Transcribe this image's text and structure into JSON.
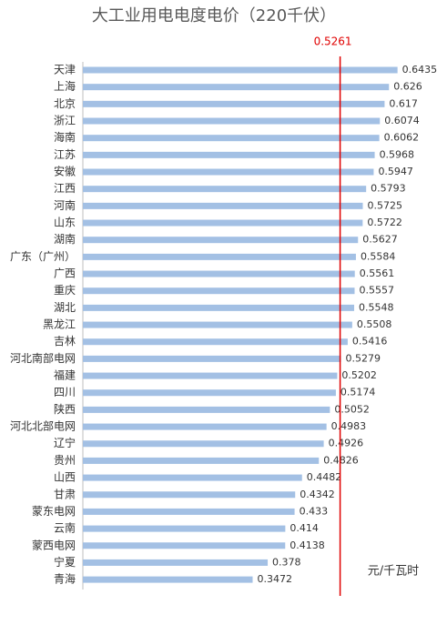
{
  "chart_data": {
    "type": "bar",
    "orientation": "horizontal",
    "title": "大工业用电电度电价（220千伏）",
    "categories": [
      "天津",
      "上海",
      "北京",
      "浙江",
      "海南",
      "江苏",
      "安徽",
      "江西",
      "河南",
      "山东",
      "湖南",
      "广东（广州）",
      "广西",
      "重庆",
      "湖北",
      "黑龙江",
      "吉林",
      "河北南部电网",
      "福建",
      "四川",
      "陕西",
      "河北北部电网",
      "辽宁",
      "贵州",
      "山西",
      "甘肃",
      "蒙东电网",
      "云南",
      "蒙西电网",
      "宁夏",
      "青海"
    ],
    "values": [
      0.6435,
      0.626,
      0.617,
      0.6074,
      0.6062,
      0.5968,
      0.5947,
      0.5793,
      0.5725,
      0.5722,
      0.5627,
      0.5584,
      0.5561,
      0.5557,
      0.5548,
      0.5508,
      0.5416,
      0.5279,
      0.5202,
      0.5174,
      0.5052,
      0.4983,
      0.4926,
      0.4826,
      0.4482,
      0.4342,
      0.433,
      0.414,
      0.4138,
      0.378,
      0.3472
    ],
    "color": "#a3c0e4",
    "xlim": [
      0,
      0.7
    ],
    "reference_line": 0.5261,
    "reference_color": "#e00000",
    "unit": "元/千瓦时"
  }
}
